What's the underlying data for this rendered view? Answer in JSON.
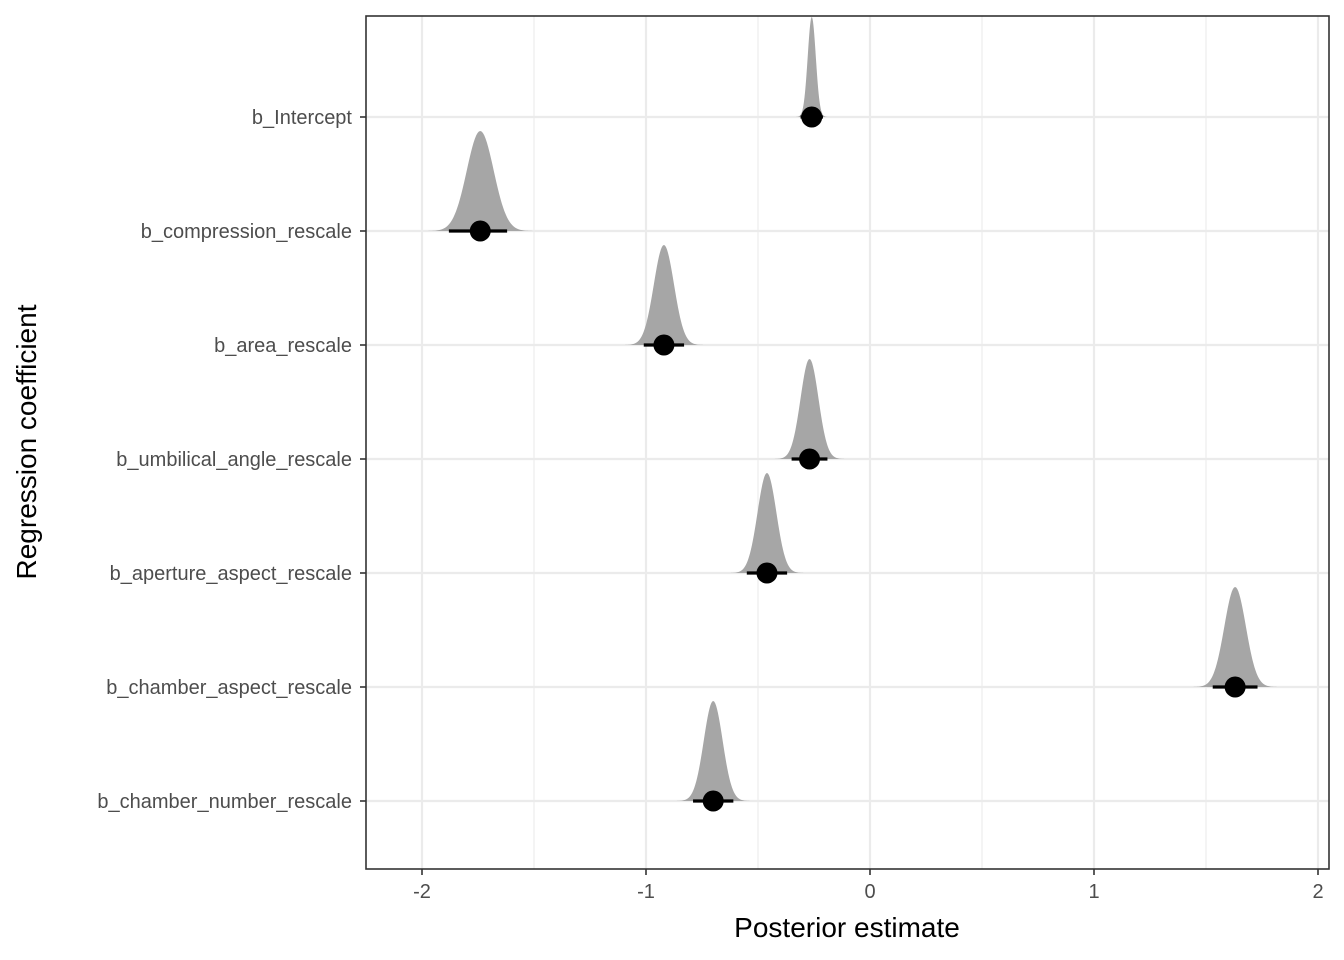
{
  "chart_data": {
    "type": "interval-density",
    "title": "",
    "xlabel": "Posterior estimate",
    "ylabel": "Regression coefficient",
    "xlim": [
      -2.25,
      2.05
    ],
    "x_ticks": [
      -2,
      -1,
      0,
      1,
      2
    ],
    "x_tick_labels": [
      "-2",
      "-1",
      "0",
      "1",
      "2"
    ],
    "grid": true,
    "colors": {
      "density": "#a6a6a6",
      "point": "#000000",
      "grid": "#ebebeb",
      "panel_border": "#333333"
    },
    "coefficients": [
      {
        "label": "b_Intercept",
        "estimate": -0.26,
        "lower": -0.31,
        "upper": -0.21,
        "sd": 0.018
      },
      {
        "label": "b_compression_rescale",
        "estimate": -1.74,
        "lower": -1.88,
        "upper": -1.62,
        "sd": 0.06
      },
      {
        "label": "b_area_rescale",
        "estimate": -0.92,
        "lower": -1.01,
        "upper": -0.83,
        "sd": 0.045
      },
      {
        "label": "b_umbilical_angle_rescale",
        "estimate": -0.27,
        "lower": -0.35,
        "upper": -0.19,
        "sd": 0.04
      },
      {
        "label": "b_aperture_aspect_rescale",
        "estimate": -0.46,
        "lower": -0.55,
        "upper": -0.37,
        "sd": 0.042
      },
      {
        "label": "b_chamber_aspect_rescale",
        "estimate": 1.63,
        "lower": 1.53,
        "upper": 1.73,
        "sd": 0.048
      },
      {
        "label": "b_chamber_number_rescale",
        "estimate": -0.7,
        "lower": -0.79,
        "upper": -0.61,
        "sd": 0.042
      }
    ]
  }
}
